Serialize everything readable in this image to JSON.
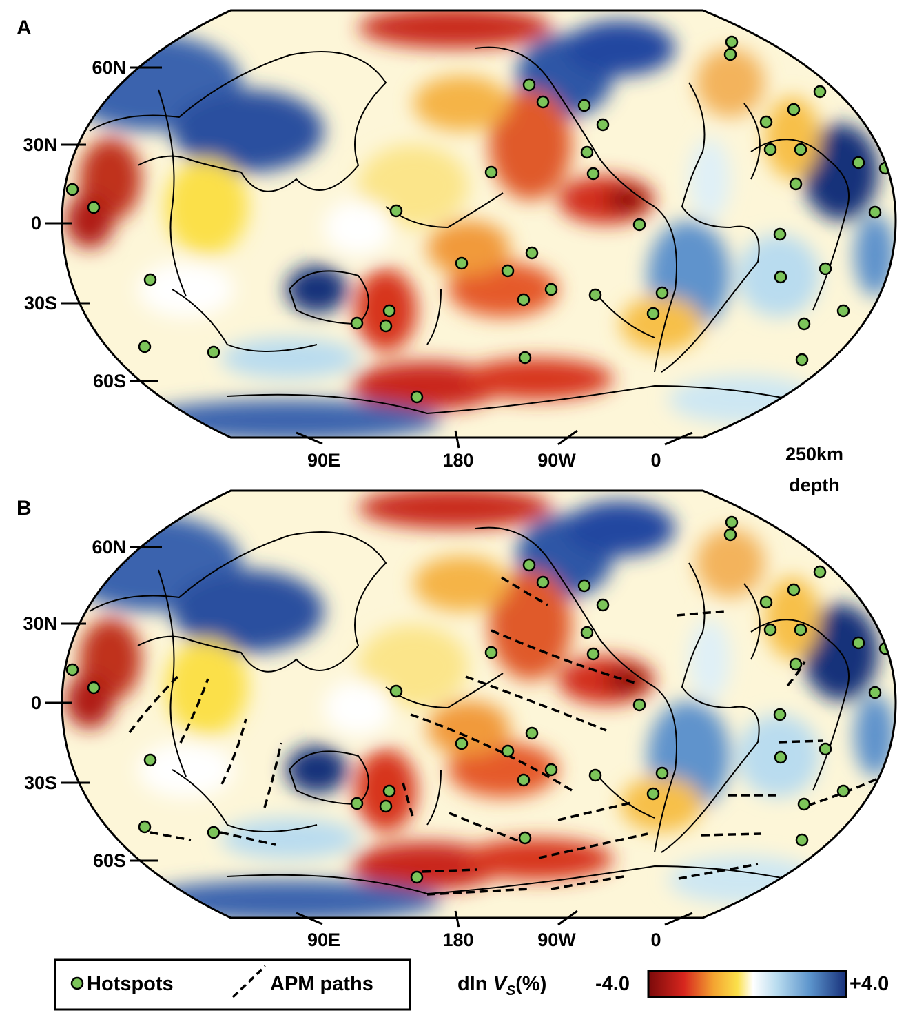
{
  "panels": [
    {
      "letter": "A",
      "lat_labels": [
        "60N",
        "30N",
        "0",
        "30S",
        "60S"
      ],
      "lon_labels": [
        "90E",
        "180",
        "90W",
        "0"
      ],
      "depth_label": [
        "250km",
        "depth"
      ]
    },
    {
      "letter": "B",
      "lat_labels": [
        "60N",
        "30N",
        "0",
        "30S",
        "60S"
      ],
      "lon_labels": [
        "90E",
        "180",
        "90W",
        "0"
      ]
    }
  ],
  "legend": {
    "hotspots_label": "Hotspots",
    "apm_label": "APM paths",
    "hotspot_color": "#7cc45a",
    "colorbar": {
      "quantity": "dln",
      "symbol": "V",
      "subscript": "S",
      "unit": "(%)",
      "min_label": "-4.0",
      "max_label": "+4.0",
      "min": -4.0,
      "max": 4.0,
      "colors": [
        "#7a0a0a",
        "#d7261e",
        "#f4a431",
        "#fbe04a",
        "#ffffff",
        "#b9dcef",
        "#5b93cb",
        "#17307a"
      ]
    }
  }
}
